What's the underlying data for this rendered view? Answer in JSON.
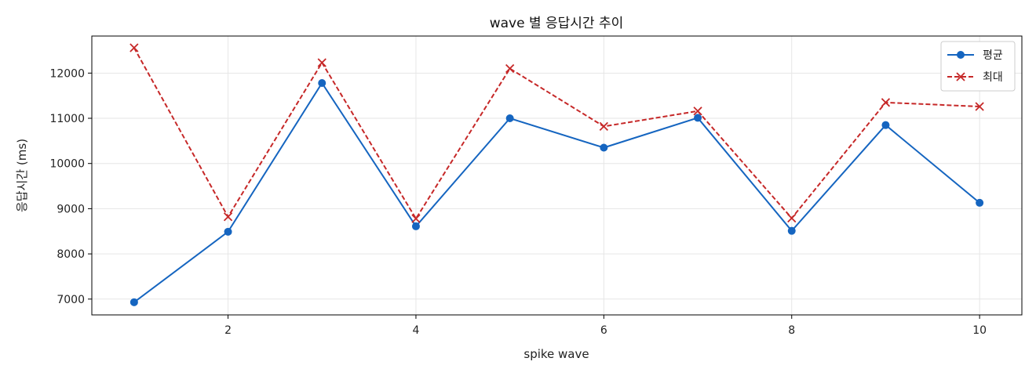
{
  "chart_data": {
    "type": "line",
    "title": "wave 별 응답시간 추이",
    "xlabel": "spike wave",
    "ylabel": "응답시간 (ms)",
    "x": [
      1,
      2,
      3,
      4,
      5,
      6,
      7,
      8,
      9,
      10
    ],
    "xlim": [
      0.55,
      10.45
    ],
    "ylim": [
      6650,
      12820
    ],
    "xticks": [
      2,
      4,
      6,
      8,
      10
    ],
    "yticks": [
      7000,
      8000,
      9000,
      10000,
      11000,
      12000
    ],
    "grid": true,
    "legend_position": "top-right",
    "series": [
      {
        "name": "평균",
        "color": "#1565c0",
        "marker": "circle",
        "linestyle": "solid",
        "values": [
          6930,
          8490,
          11780,
          8610,
          11000,
          10350,
          11010,
          8510,
          10850,
          9130
        ]
      },
      {
        "name": "최대",
        "color": "#c62828",
        "marker": "x",
        "linestyle": "dashed",
        "values": [
          12560,
          8820,
          12230,
          8780,
          12100,
          10820,
          11160,
          8790,
          11350,
          11260
        ]
      }
    ]
  }
}
